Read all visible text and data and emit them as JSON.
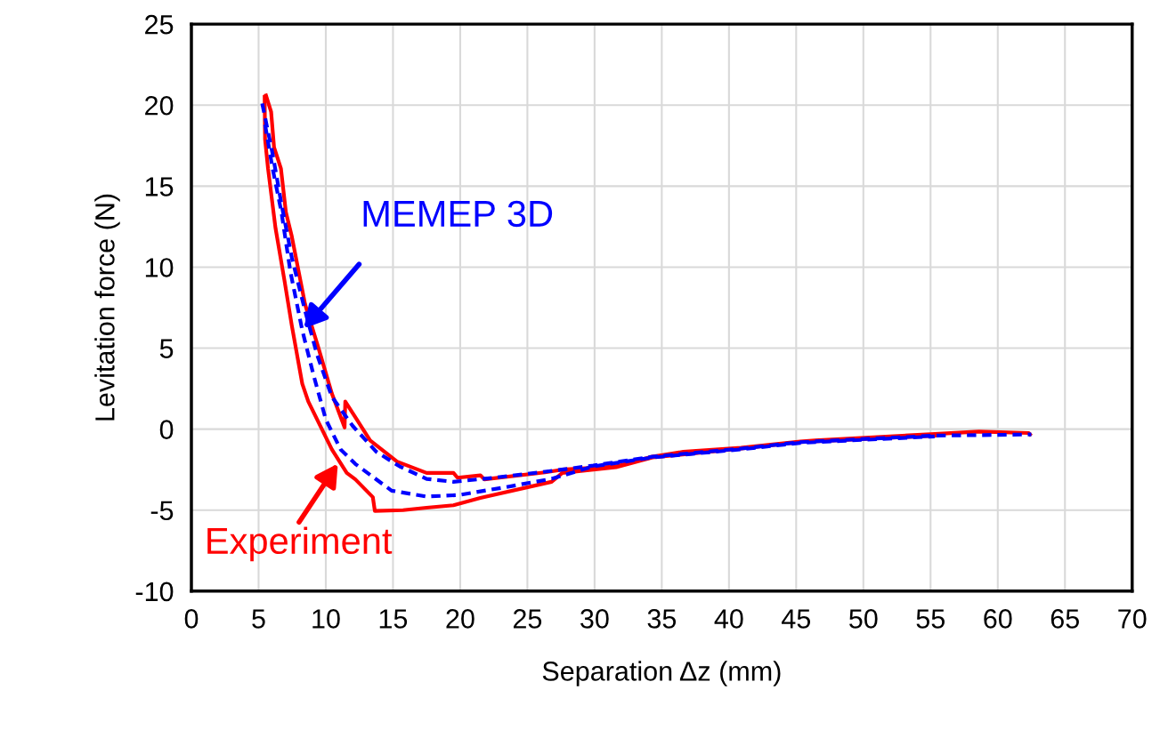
{
  "chart_data": {
    "type": "line",
    "xlabel": "Separation Δz (mm)",
    "ylabel": "Levitation force (N)",
    "xlim": [
      0,
      70
    ],
    "ylim": [
      -10,
      25
    ],
    "xticks": [
      0,
      5,
      10,
      15,
      20,
      25,
      30,
      35,
      40,
      45,
      50,
      55,
      60,
      65,
      70
    ],
    "yticks": [
      -10,
      -5,
      0,
      5,
      10,
      15,
      20,
      25
    ],
    "grid": true,
    "legend": false,
    "series": [
      {
        "color": "#ff0000",
        "line_style": "solid",
        "x": [
          5.55,
          5.93,
          6.15,
          6.66,
          7.03,
          7.47,
          8.46,
          9.46,
          10.45,
          11.4,
          11.45,
          12.3,
          13.3,
          15.3,
          17.5,
          19.5,
          19.8,
          21.5,
          21.8,
          26.3,
          27.6,
          31.6,
          34.3,
          36.6,
          40.9,
          45.3,
          46.4,
          55.3,
          58.6,
          62.3,
          62.4
        ],
        "values": [
          20.6,
          19.6,
          17.4,
          16.1,
          13.4,
          11.9,
          7.7,
          5.0,
          2.2,
          0.1,
          1.7,
          0.6,
          -0.7,
          -2.0,
          -2.7,
          -2.7,
          -3.0,
          -2.85,
          -3.1,
          -2.67,
          -2.5,
          -2.3,
          -1.7,
          -1.4,
          -1.15,
          -0.77,
          -0.7,
          -0.3,
          -0.15,
          -0.24,
          -0.33
        ]
      },
      {
        "color": "#ff0000",
        "line_style": "solid",
        "x": [
          5.45,
          5.48,
          5.7,
          6.26,
          6.92,
          7.47,
          8.25,
          8.7,
          9.35,
          10.45,
          11.56,
          12.2,
          13.5,
          13.65,
          15.75,
          17.5,
          19.5,
          21.5,
          26.8,
          27.6,
          31.6,
          34.3,
          40.9,
          45.3,
          55.3
        ],
        "values": [
          20.5,
          17.9,
          16.1,
          12.4,
          9.2,
          6.4,
          2.8,
          1.7,
          0.6,
          -1.25,
          -2.7,
          -3.1,
          -4.2,
          -5.05,
          -5.0,
          -4.85,
          -4.7,
          -4.25,
          -3.25,
          -2.7,
          -2.35,
          -1.75,
          -1.2,
          -0.8,
          -0.4
        ]
      },
      {
        "color": "#0000ff",
        "line_style": "dashed",
        "x": [
          5.27,
          6.04,
          6.7,
          7.47,
          8.46,
          9.35,
          10.45,
          12.0,
          13.76,
          15.5,
          17.5,
          19.5,
          22.2,
          26.6,
          29.9,
          34.3,
          40.9,
          45.3,
          55.3,
          62.5
        ],
        "values": [
          20.1,
          17.0,
          13.9,
          10.6,
          7.3,
          4.6,
          2.0,
          0.2,
          -1.4,
          -2.3,
          -3.07,
          -3.25,
          -3.03,
          -2.6,
          -2.25,
          -1.7,
          -1.2,
          -0.8,
          -0.4,
          -0.33
        ]
      },
      {
        "color": "#0000ff",
        "line_style": "dashed",
        "x": [
          5.48,
          6.04,
          6.7,
          7.37,
          8.25,
          9.1,
          10.0,
          11.1,
          12.2,
          14.9,
          17.5,
          19.9,
          23.25,
          26.8,
          29.9,
          34.3,
          40.9,
          45.3,
          55.3
        ],
        "values": [
          18.8,
          16.1,
          13.4,
          9.7,
          6.1,
          3.3,
          0.6,
          -1.25,
          -2.15,
          -3.8,
          -4.16,
          -4.07,
          -3.6,
          -3.07,
          -2.3,
          -1.75,
          -1.25,
          -0.85,
          -0.45
        ]
      }
    ],
    "annotations": [
      {
        "text": "Experiment",
        "x": 11.0,
        "y": -2.0
      },
      {
        "text": "MEMEP 3D",
        "x": 8.25,
        "y": 6.1
      }
    ]
  }
}
